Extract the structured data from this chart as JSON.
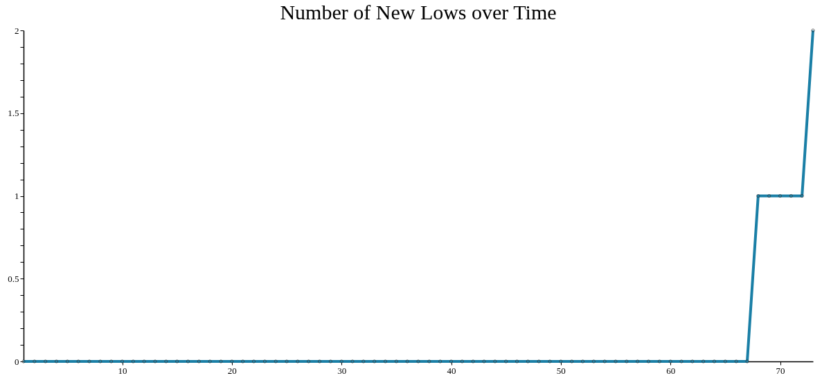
{
  "chart_data": {
    "type": "line",
    "title": "Number of New Lows over Time",
    "x": [
      1,
      2,
      3,
      4,
      5,
      6,
      7,
      8,
      9,
      10,
      11,
      12,
      13,
      14,
      15,
      16,
      17,
      18,
      19,
      20,
      21,
      22,
      23,
      24,
      25,
      26,
      27,
      28,
      29,
      30,
      31,
      32,
      33,
      34,
      35,
      36,
      37,
      38,
      39,
      40,
      41,
      42,
      43,
      44,
      45,
      46,
      47,
      48,
      49,
      50,
      51,
      52,
      53,
      54,
      55,
      56,
      57,
      58,
      59,
      60,
      61,
      62,
      63,
      64,
      65,
      66,
      67,
      68,
      69,
      70,
      71,
      72,
      73
    ],
    "series": [
      {
        "color": "#1a7fa6",
        "values": [
          0,
          0,
          0,
          0,
          0,
          0,
          0,
          0,
          0,
          0,
          0,
          0,
          0,
          0,
          0,
          0,
          0,
          0,
          0,
          0,
          0,
          0,
          0,
          0,
          0,
          0,
          0,
          0,
          0,
          0,
          0,
          0,
          0,
          0,
          0,
          0,
          0,
          0,
          0,
          0,
          0,
          0,
          0,
          0,
          0,
          0,
          0,
          0,
          0,
          0,
          0,
          0,
          0,
          0,
          0,
          0,
          0,
          0,
          0,
          0,
          0,
          0,
          0,
          0,
          0,
          0,
          0,
          1,
          1,
          1,
          1,
          1,
          2
        ]
      }
    ],
    "xlim": [
      1,
      73
    ],
    "ylim": [
      0,
      2
    ],
    "xticks": [
      10,
      20,
      30,
      40,
      50,
      60,
      70
    ],
    "yticks": [
      0,
      {
        "value": 0.1,
        "label": null
      },
      {
        "value": 0.2,
        "label": null
      },
      {
        "value": 0.3,
        "label": null
      },
      {
        "value": 0.4,
        "label": null
      },
      0.5,
      {
        "value": 0.6,
        "label": null
      },
      {
        "value": 0.7,
        "label": null
      },
      {
        "value": 0.8,
        "label": null
      },
      {
        "value": 0.9,
        "label": null
      },
      1,
      {
        "value": 1.1,
        "label": null
      },
      {
        "value": 1.2,
        "label": null
      },
      {
        "value": 1.3,
        "label": null
      },
      {
        "value": 1.4,
        "label": null
      },
      1.5,
      {
        "value": 1.6,
        "label": null
      },
      {
        "value": 1.7,
        "label": null
      },
      {
        "value": 1.8,
        "label": null
      },
      {
        "value": 1.9,
        "label": null
      },
      2
    ],
    "marker": "circle",
    "line_style": "solid",
    "grid": false
  }
}
